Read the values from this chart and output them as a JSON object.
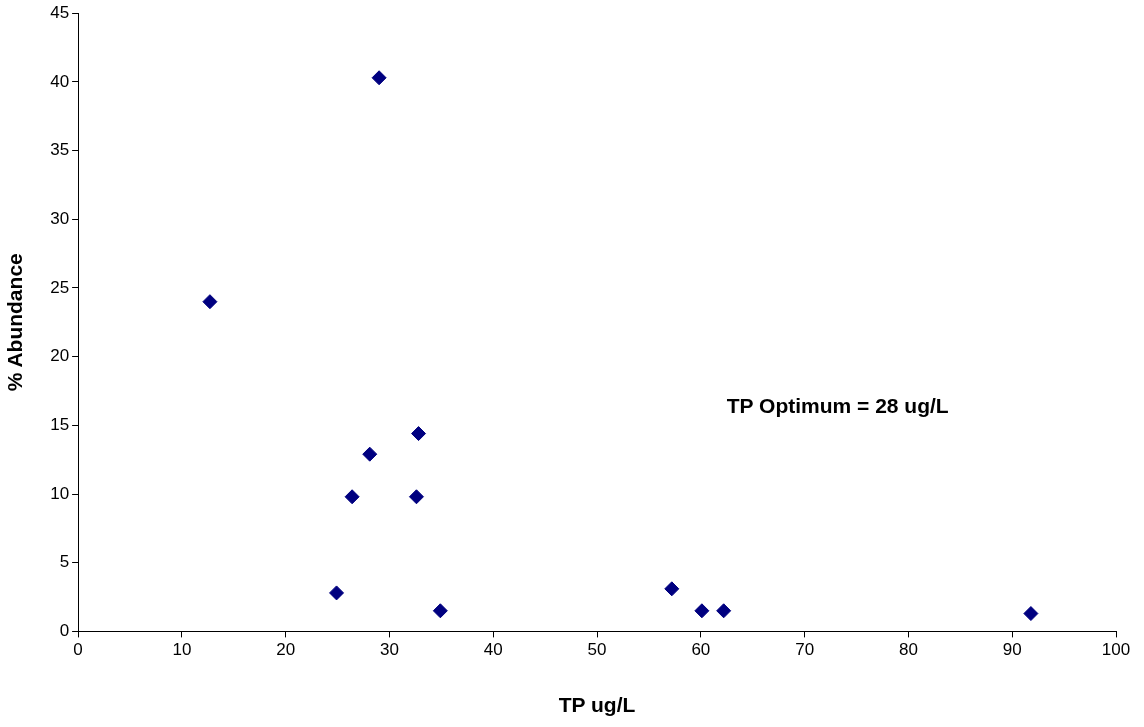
{
  "chart_data": {
    "type": "scatter",
    "xlabel": "TP ug/L",
    "ylabel": "% Abundance",
    "x": [
      12.7,
      29.0,
      28.1,
      32.8,
      26.4,
      32.6,
      24.9,
      34.9,
      57.2,
      60.1,
      62.2,
      91.8
    ],
    "series": [
      {
        "color": "#000080",
        "values": [
          24,
          40.3,
          12.9,
          14.4,
          9.8,
          9.8,
          2.8,
          1.5,
          3.1,
          1.5,
          1.5,
          1.3
        ]
      }
    ],
    "xlim": [
      0,
      100
    ],
    "xticks": [
      0,
      10,
      20,
      30,
      40,
      50,
      60,
      70,
      80,
      90,
      100
    ],
    "ylim": [
      0,
      45
    ],
    "yticks": [
      0,
      5,
      10,
      15,
      20,
      25,
      30,
      35,
      40,
      45
    ],
    "grid": false,
    "legend": false,
    "marker": "diamond",
    "annotations": [
      "TP Optimum = 28 ug/L"
    ]
  }
}
